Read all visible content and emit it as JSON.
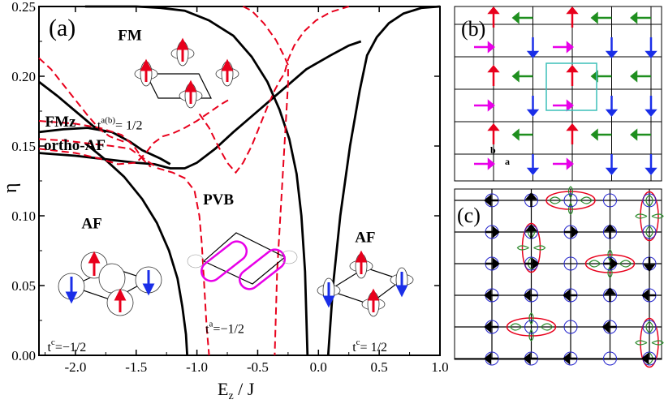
{
  "chart_data": {
    "type": "line",
    "panel_a": {
      "panel_label": "(a)",
      "xlabel": "E_z / J",
      "ylabel": "η",
      "xlim": [
        -2.3,
        1.0
      ],
      "ylim": [
        0.0,
        0.25
      ],
      "x_ticks": [
        "-2.0",
        "-1.5",
        "-1.0",
        "-0.5",
        "0.0",
        "0.5",
        "1.0"
      ],
      "y_ticks": [
        "0.00",
        "0.05",
        "0.10",
        "0.15",
        "0.20",
        "0.25"
      ],
      "series": [
        {
          "style": "solid",
          "color": "#000000",
          "points": [
            [
              -2.3,
              0.145
            ],
            [
              -2.0,
              0.143
            ],
            [
              -1.7,
              0.14
            ],
            [
              -1.5,
              0.138
            ],
            [
              -1.35,
              0.137
            ],
            [
              -1.22,
              0.134
            ],
            [
              -1.1,
              0.134
            ],
            [
              -1.0,
              0.138
            ],
            [
              -0.85,
              0.148
            ],
            [
              -0.7,
              0.16
            ],
            [
              -0.5,
              0.175
            ],
            [
              -0.3,
              0.19
            ],
            [
              -0.1,
              0.205
            ],
            [
              0.1,
              0.215
            ],
            [
              0.25,
              0.222
            ],
            [
              0.35,
              0.225
            ]
          ]
        },
        {
          "style": "solid",
          "color": "#000000",
          "points": [
            [
              -2.3,
              0.16
            ],
            [
              -2.1,
              0.162
            ],
            [
              -1.9,
              0.163
            ],
            [
              -1.7,
              0.16
            ],
            [
              -1.55,
              0.153
            ],
            [
              -1.45,
              0.147
            ],
            [
              -1.3,
              0.141
            ],
            [
              -1.22,
              0.137
            ]
          ]
        },
        {
          "style": "solid",
          "color": "#000000",
          "points": [
            [
              -2.3,
              0.196
            ],
            [
              -2.15,
              0.186
            ],
            [
              -2.0,
              0.175
            ],
            [
              -1.85,
              0.164
            ],
            [
              -1.75,
              0.16
            ]
          ]
        },
        {
          "style": "solid",
          "color": "#000000",
          "points": [
            [
              -1.92,
              0.25
            ],
            [
              -1.7,
              0.25
            ],
            [
              -1.5,
              0.25
            ],
            [
              -1.3,
              0.249
            ],
            [
              -1.1,
              0.247
            ],
            [
              -0.9,
              0.24
            ],
            [
              -0.7,
              0.229
            ],
            [
              -0.55,
              0.214
            ],
            [
              -0.42,
              0.196
            ],
            [
              -0.32,
              0.176
            ],
            [
              -0.24,
              0.155
            ],
            [
              -0.18,
              0.13
            ],
            [
              -0.14,
              0.1
            ],
            [
              -0.11,
              0.06
            ],
            [
              -0.1,
              0.03
            ],
            [
              -0.09,
              0.0
            ]
          ]
        },
        {
          "style": "solid",
          "color": "#000000",
          "points": [
            [
              0.08,
              0.0
            ],
            [
              0.12,
              0.05
            ],
            [
              0.18,
              0.1
            ],
            [
              0.26,
              0.15
            ],
            [
              0.34,
              0.19
            ],
            [
              0.4,
              0.215
            ],
            [
              0.48,
              0.228
            ],
            [
              0.58,
              0.238
            ],
            [
              0.7,
              0.245
            ],
            [
              0.85,
              0.249
            ],
            [
              1.0,
              0.25
            ]
          ]
        },
        {
          "style": "solid",
          "color": "#000000",
          "points": [
            [
              -1.92,
              0.152
            ],
            [
              -1.75,
              0.14
            ],
            [
              -1.6,
              0.128
            ],
            [
              -1.45,
              0.112
            ],
            [
              -1.33,
              0.095
            ],
            [
              -1.23,
              0.075
            ],
            [
              -1.16,
              0.055
            ],
            [
              -1.12,
              0.035
            ],
            [
              -1.09,
              0.015
            ],
            [
              -1.08,
              0.0
            ]
          ]
        },
        {
          "style": "dashed",
          "color": "#e8001c",
          "points": [
            [
              -2.3,
              0.213
            ],
            [
              -2.2,
              0.205
            ],
            [
              -2.1,
              0.194
            ],
            [
              -2.0,
              0.183
            ],
            [
              -1.9,
              0.172
            ],
            [
              -1.8,
              0.162
            ],
            [
              -1.72,
              0.157
            ],
            [
              -1.6,
              0.153
            ]
          ]
        },
        {
          "style": "dashed",
          "color": "#e8001c",
          "points": [
            [
              -2.3,
              0.155
            ],
            [
              -2.1,
              0.154
            ],
            [
              -1.9,
              0.152
            ],
            [
              -1.7,
              0.15
            ],
            [
              -1.55,
              0.148
            ],
            [
              -1.42,
              0.14
            ],
            [
              -1.32,
              0.134
            ],
            [
              -1.2,
              0.131
            ],
            [
              -1.1,
              0.127
            ],
            [
              -1.02,
              0.118
            ],
            [
              -0.98,
              0.1
            ],
            [
              -0.96,
              0.08
            ],
            [
              -0.94,
              0.05
            ],
            [
              -0.92,
              0.02
            ],
            [
              -0.9,
              0.0
            ]
          ]
        },
        {
          "style": "dashed",
          "color": "#e8001c",
          "points": [
            [
              -2.3,
              0.168
            ],
            [
              -2.0,
              0.166
            ],
            [
              -1.8,
              0.163
            ],
            [
              -1.62,
              0.158
            ],
            [
              -1.52,
              0.15
            ],
            [
              -1.44,
              0.14
            ],
            [
              -1.38,
              0.135
            ]
          ]
        },
        {
          "style": "dashed",
          "color": "#e8001c",
          "points": [
            [
              -2.3,
              0.148
            ],
            [
              -2.0,
              0.145
            ],
            [
              -1.8,
              0.141
            ],
            [
              -1.65,
              0.137
            ],
            [
              -1.5,
              0.138
            ],
            [
              -1.42,
              0.145
            ],
            [
              -1.36,
              0.152
            ],
            [
              -1.28,
              0.157
            ],
            [
              -1.2,
              0.159
            ],
            [
              -1.1,
              0.163
            ],
            [
              -1.0,
              0.168
            ],
            [
              -0.9,
              0.174
            ],
            [
              -0.8,
              0.18
            ],
            [
              -0.72,
              0.184
            ]
          ]
        },
        {
          "style": "dashed",
          "color": "#e8001c",
          "points": [
            [
              -0.98,
              0.173
            ],
            [
              -0.9,
              0.163
            ],
            [
              -0.82,
              0.149
            ],
            [
              -0.75,
              0.138
            ],
            [
              -0.68,
              0.131
            ],
            [
              -0.62,
              0.138
            ],
            [
              -0.55,
              0.15
            ],
            [
              -0.48,
              0.165
            ],
            [
              -0.42,
              0.178
            ],
            [
              -0.36,
              0.19
            ],
            [
              -0.31,
              0.198
            ],
            [
              -0.28,
              0.202
            ],
            [
              -0.25,
              0.212
            ],
            [
              -0.2,
              0.222
            ],
            [
              -0.12,
              0.232
            ],
            [
              -0.02,
              0.24
            ],
            [
              0.1,
              0.246
            ],
            [
              0.25,
              0.25
            ]
          ]
        },
        {
          "style": "dashed",
          "color": "#e8001c",
          "points": [
            [
              -0.62,
              0.25
            ],
            [
              -0.55,
              0.247
            ],
            [
              -0.45,
              0.238
            ],
            [
              -0.35,
              0.226
            ],
            [
              -0.28,
              0.214
            ],
            [
              -0.25,
              0.208
            ],
            [
              -0.25,
              0.195
            ],
            [
              -0.26,
              0.18
            ],
            [
              -0.28,
              0.15
            ],
            [
              -0.3,
              0.12
            ],
            [
              -0.32,
              0.09
            ],
            [
              -0.34,
              0.06
            ],
            [
              -0.35,
              0.03
            ],
            [
              -0.36,
              0.0
            ]
          ]
        }
      ],
      "annotations": [
        {
          "text": "FM",
          "x": -1.65,
          "y": 0.226,
          "color": "#000000"
        },
        {
          "text": "FMz",
          "x": -2.25,
          "y": 0.164,
          "color": "#000000"
        },
        {
          "text": "ortho-AF",
          "x": -2.26,
          "y": 0.147,
          "color": "#e8001c"
        },
        {
          "text": "PVB",
          "x": -0.95,
          "y": 0.108,
          "color": "#000000"
        },
        {
          "text": "AF",
          "x": -1.95,
          "y": 0.091,
          "color": "#000000"
        },
        {
          "text": "AF",
          "x": 0.3,
          "y": 0.081,
          "color": "#000000"
        }
      ],
      "hopping_labels": [
        {
          "base": "t",
          "sup": "a(b)",
          "rest": "= 1/2",
          "x": -1.82,
          "y": 0.162
        },
        {
          "base": "t",
          "sup": "a",
          "rest": "=−1/2",
          "x": -0.93,
          "y": 0.016
        },
        {
          "base": "t",
          "sup": "c",
          "rest": "=−1/2",
          "x": -2.23,
          "y": 0.003
        },
        {
          "base": "t",
          "sup": "c",
          "rest": "= 1/2",
          "x": 0.28,
          "y": 0.003
        }
      ]
    },
    "panel_b": {
      "panel_label": "(b)",
      "axis_labels": [
        "b",
        "a"
      ],
      "grid_size": 5,
      "rows": [
        [
          "red-up",
          "green-left",
          "red-up",
          "green-left",
          "green-left"
        ],
        [
          "magenta-right",
          "blue-down",
          "magenta-right",
          "blue-down",
          "blue-down"
        ],
        [
          "red-up",
          "green-left",
          "red-up",
          "green-left",
          "green-left"
        ],
        [
          "magenta-right",
          "blue-down",
          "magenta-right",
          "blue-down",
          "blue-down"
        ],
        [
          "red-up",
          "green-left",
          "red-up",
          "green-left",
          "green-left"
        ],
        [
          "magenta-right",
          "blue-down",
          "magenta-right",
          "blue-down",
          "blue-down"
        ]
      ],
      "highlight_color": "#3cbfb8"
    },
    "panel_c": {
      "panel_label": "(c)",
      "rows": [
        [
          "left",
          "up",
          "none",
          "none",
          "none"
        ],
        [
          "right",
          "up",
          "right",
          "up",
          "none"
        ],
        [
          "right",
          "right",
          "none",
          "right",
          "down"
        ],
        [
          "left",
          "left",
          "left",
          "up",
          "left"
        ],
        [
          "left",
          "none",
          "none",
          "left",
          "none"
        ],
        [
          "left",
          "left",
          "left",
          "none",
          "left"
        ]
      ],
      "bonds": [
        {
          "row": 0,
          "col": 2,
          "orient": "h"
        },
        {
          "row": 0,
          "col": 4,
          "orient": "v"
        },
        {
          "row": 1,
          "col": 1,
          "orient": "v"
        },
        {
          "row": 2,
          "col": 3,
          "orient": "h"
        },
        {
          "row": 4,
          "col": 1,
          "orient": "h"
        },
        {
          "row": 4,
          "col": 4,
          "orient": "v"
        }
      ],
      "colors": {
        "circle": "#2222cc",
        "bond": "#e8001c",
        "orbital": "#2e8b2e"
      }
    }
  }
}
